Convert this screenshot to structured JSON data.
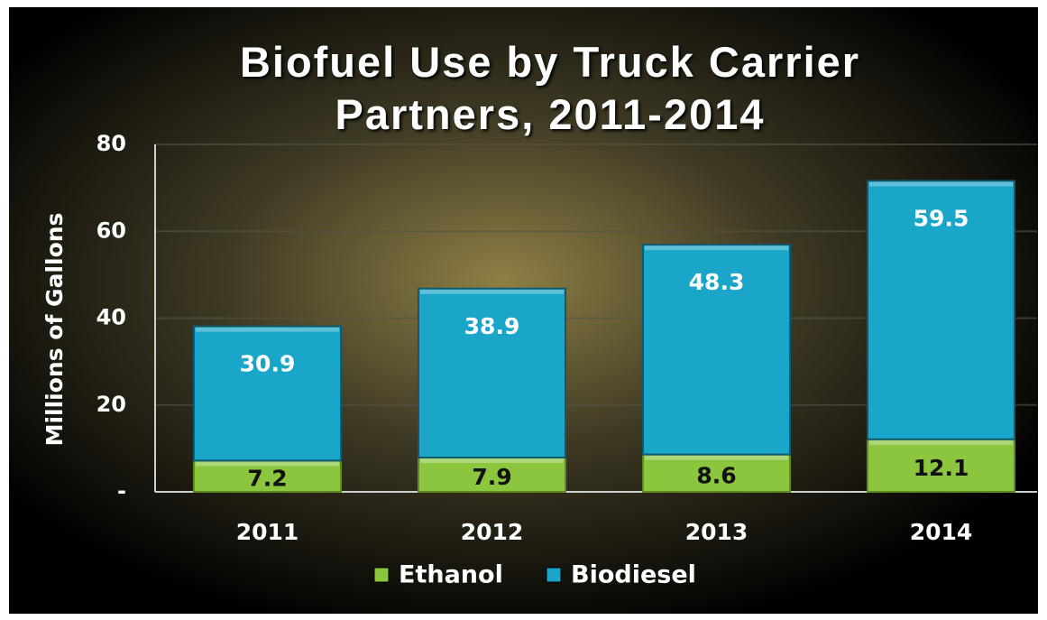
{
  "chart_data": {
    "type": "stacked_bar",
    "title": "Biofuel Use by Truck Carrier Partners, 2011-2014",
    "y_label": "Millions of Gallons",
    "categories": [
      "2011",
      "2012",
      "2013",
      "2014"
    ],
    "series": [
      {
        "name": "Ethanol",
        "color": "#8cc63f",
        "values": [
          7.2,
          7.9,
          8.6,
          12.1
        ]
      },
      {
        "name": "Biodiesel",
        "color": "#1aa6c8",
        "values": [
          30.9,
          38.9,
          48.3,
          59.5
        ]
      }
    ],
    "ylim": [
      0,
      80
    ],
    "yticks": [
      {
        "value": 0,
        "label": "-"
      },
      20,
      40,
      60,
      80
    ],
    "grid": true,
    "legend": "bottom"
  }
}
